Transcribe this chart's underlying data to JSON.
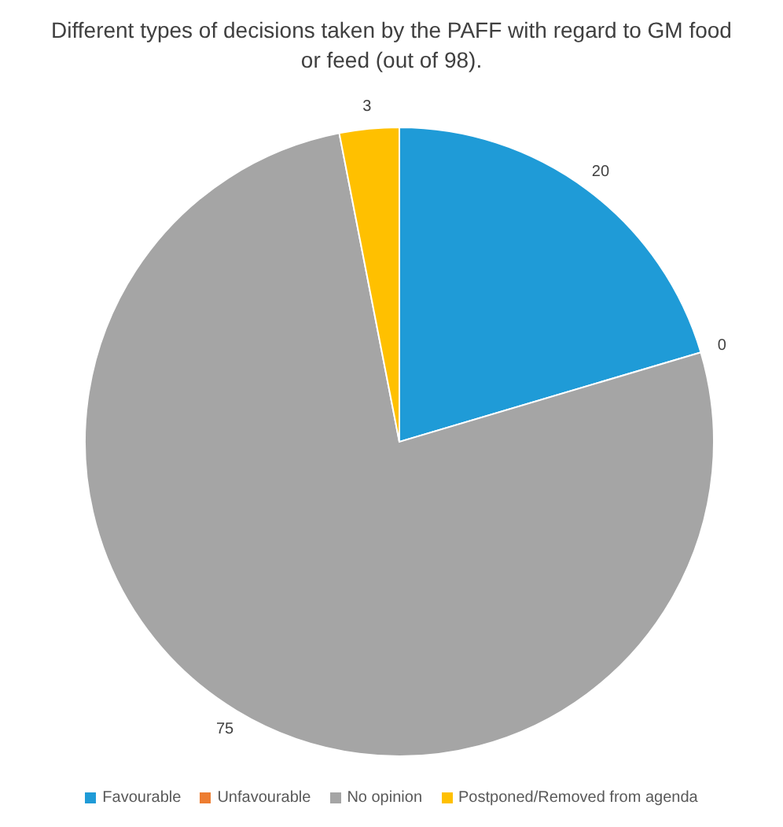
{
  "chart_data": {
    "type": "pie",
    "title": "Different types of decisions taken by the PAFF with regard to GM food or feed (out of 98).",
    "categories": [
      "Favourable",
      "Unfavourable",
      "No opinion",
      "Postponed/Removed from agenda"
    ],
    "values": [
      20,
      0,
      75,
      3
    ],
    "colors": [
      "#1f9bd7",
      "#ed7d31",
      "#a5a5a5",
      "#ffc000"
    ],
    "value_labels": [
      "20",
      "0",
      "75",
      "3"
    ],
    "legend": "bottom"
  }
}
